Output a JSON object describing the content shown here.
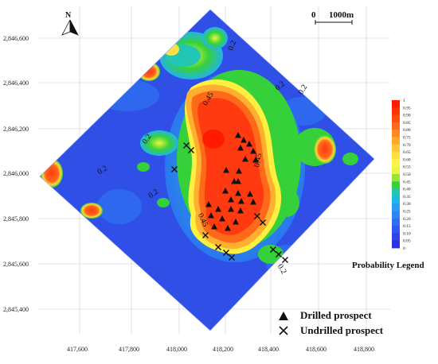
{
  "north": {
    "label": "N"
  },
  "scale_bar": {
    "start": "0",
    "end": "1000m"
  },
  "axes": {
    "x_ticks": [
      "417,600",
      "417,800",
      "418,000",
      "418,200",
      "418,400",
      "418,600",
      "418,800"
    ],
    "y_ticks": [
      "2,846,600",
      "2,846,400",
      "2,846,200",
      "2,846,000",
      "2,845,800",
      "2,845,600",
      "2,845,400"
    ]
  },
  "contour_labels": [
    "0.2",
    "0.2",
    "0.2",
    "0.2",
    "0.45",
    "0.45",
    "0.45",
    "0.2",
    "0.2",
    "0.2"
  ],
  "legend": {
    "title": "Probability Legend",
    "ticks": [
      "1",
      "0.95",
      "0.90",
      "0.85",
      "0.80",
      "0.75",
      "0.70",
      "0.65",
      "0.60",
      "0.55",
      "0.50",
      "0.45",
      "0.40",
      "0.35",
      "0.30",
      "0.25",
      "0.20",
      "0.15",
      "0.10",
      "0.05",
      "0"
    ],
    "colors": [
      "#ff1a00",
      "#ff3300",
      "#ff4d10",
      "#ff6a1a",
      "#ff8820",
      "#ffa830",
      "#ffc838",
      "#ffe040",
      "#fff24a",
      "#e8f542",
      "#9be33a",
      "#36d13a",
      "#22c6b4",
      "#22b4e8",
      "#2a9cf2",
      "#2e86f4",
      "#2f6ef2",
      "#2f58ee",
      "#2e44ea",
      "#2c30e4"
    ]
  },
  "key": {
    "drilled": "Drilled prospect",
    "undrilled": "Undrilled prospect"
  },
  "drilled_count": 26,
  "undrilled_count": 12
}
